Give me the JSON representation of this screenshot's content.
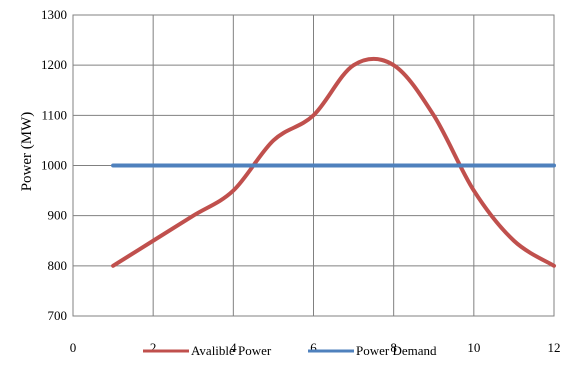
{
  "chart_data": {
    "type": "line",
    "xlabel": "",
    "ylabel": "Power (MW)",
    "xlim": [
      0,
      12
    ],
    "ylim": [
      700,
      1300
    ],
    "x_ticks": [
      0,
      2,
      4,
      6,
      8,
      10,
      12
    ],
    "y_ticks": [
      700,
      800,
      900,
      1000,
      1100,
      1200,
      1300
    ],
    "x_tick_labels": [
      "0",
      "2",
      "4",
      "6",
      "8",
      "10",
      "12"
    ],
    "y_tick_labels": [
      "700",
      "800",
      "900",
      "1000",
      "1100",
      "1200",
      "1300"
    ],
    "grid": true,
    "legend_position": "bottom",
    "series": [
      {
        "name": "Avalible Power",
        "color": "#c0504d",
        "x": [
          1,
          2,
          3,
          4,
          5,
          6,
          7,
          8,
          9,
          10,
          11,
          12
        ],
        "values": [
          800,
          850,
          900,
          950,
          1050,
          1100,
          1200,
          1200,
          1100,
          950,
          850,
          800
        ],
        "smooth": true
      },
      {
        "name": "Power Demand",
        "color": "#4f81bd",
        "x": [
          1,
          2,
          3,
          4,
          5,
          6,
          7,
          8,
          9,
          10,
          11,
          12
        ],
        "values": [
          1000,
          1000,
          1000,
          1000,
          1000,
          1000,
          1000,
          1000,
          1000,
          1000,
          1000,
          1000
        ],
        "smooth": false
      }
    ]
  }
}
